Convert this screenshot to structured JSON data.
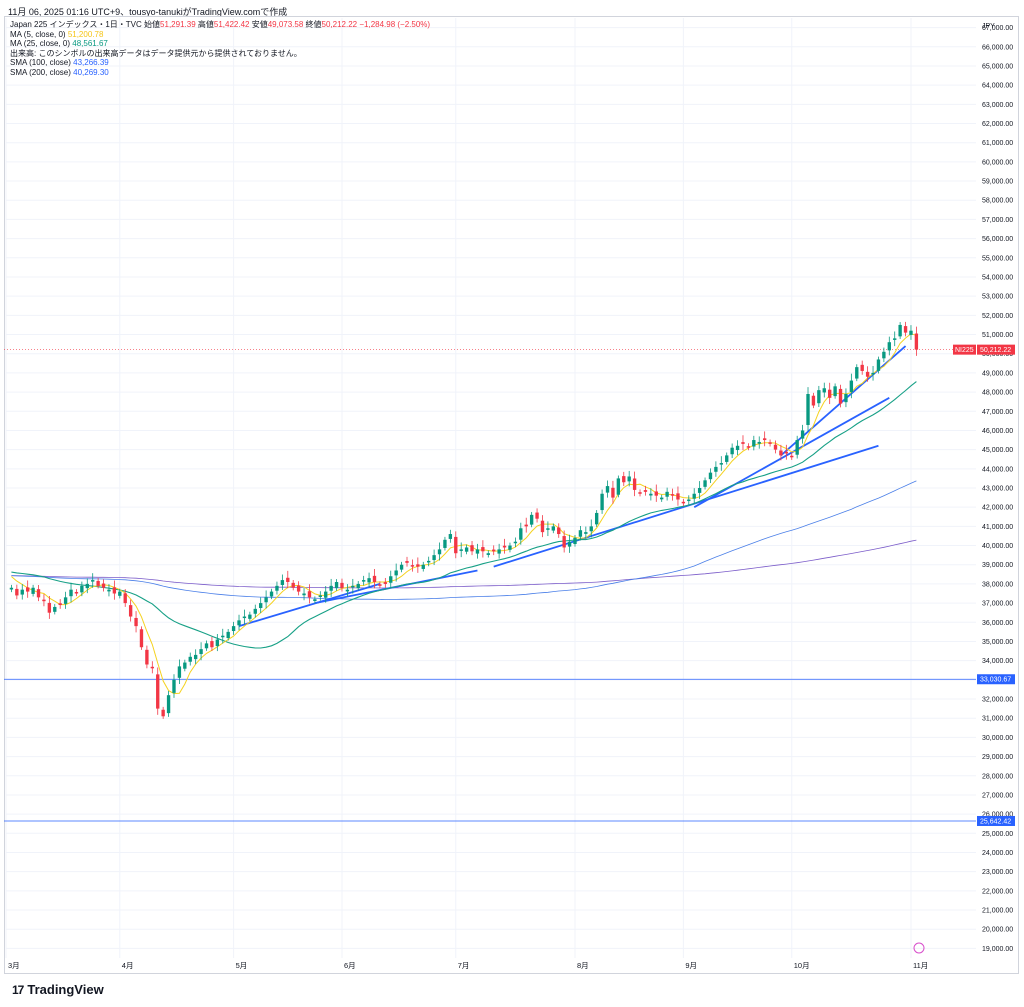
{
  "header": {
    "timestamp_line": "11月 06, 2025 01:16 UTC+9、tousyo-tanukiがTradingView.comで作成"
  },
  "legend": {
    "symbol_line": "Japan 225 インデックス・1日・TVC",
    "open_label": "始値",
    "open_value": "51,291.39",
    "high_label": "高値",
    "high_value": "51,422.42",
    "low_label": "安値",
    "low_value": "49,073.58",
    "close_label": "終値",
    "close_value": "50,212.22",
    "change_value": "−1,284.98 (−2.50%)",
    "ma5_label": "MA (5, close, 0)",
    "ma5_value": "51,200.78",
    "ma25_label": "MA (25, close, 0)",
    "ma25_value": "48,561.67",
    "volume_note": "出来高: このシンボルの出来高データはデータ提供元から提供されておりません。",
    "sma100_label": "SMA (100, close)",
    "sma100_value": "43,266.39",
    "sma200_label": "SMA (200, close)",
    "sma200_value": "40,269.30"
  },
  "brand": {
    "logo_text": "17",
    "name": "TradingView"
  },
  "chart_data": {
    "type": "candlestick",
    "currency": "JPY",
    "symbol_tag": "NI225",
    "last_price_label": "50,212.22",
    "ylim": [
      18500,
      67500
    ],
    "y_ticks": [
      19000,
      20000,
      21000,
      22000,
      23000,
      24000,
      25000,
      26000,
      27000,
      28000,
      29000,
      30000,
      31000,
      32000,
      33000,
      34000,
      35000,
      36000,
      37000,
      38000,
      39000,
      40000,
      41000,
      42000,
      43000,
      44000,
      45000,
      46000,
      47000,
      48000,
      49000,
      50000,
      51000,
      52000,
      53000,
      54000,
      55000,
      56000,
      57000,
      58000,
      59000,
      60000,
      61000,
      62000,
      63000,
      64000,
      65000,
      66000,
      67000
    ],
    "y_tick_labels": [
      "19,000.00",
      "20,000.00",
      "21,000.00",
      "22,000.00",
      "23,000.00",
      "24,000.00",
      "25,000.00",
      "26,000.00",
      "27,000.00",
      "28,000.00",
      "29,000.00",
      "30,000.00",
      "31,000.00",
      "32,000.00",
      "33,000.00",
      "34,000.00",
      "35,000.00",
      "36,000.00",
      "37,000.00",
      "38,000.00",
      "39,000.00",
      "40,000.00",
      "41,000.00",
      "42,000.00",
      "43,000.00",
      "44,000.00",
      "45,000.00",
      "46,000.00",
      "47,000.00",
      "48,000.00",
      "49,000.00",
      "50,000.00",
      "51,000.00",
      "52,000.00",
      "53,000.00",
      "54,000.00",
      "55,000.00",
      "56,000.00",
      "57,000.00",
      "58,000.00",
      "59,000.00",
      "60,000.00",
      "61,000.00",
      "62,000.00",
      "63,000.00",
      "64,000.00",
      "65,000.00",
      "66,000.00",
      "67,000.00"
    ],
    "x_month_labels": [
      {
        "label": "3月",
        "index": -1
      },
      {
        "label": "4月",
        "index": 20
      },
      {
        "label": "5月",
        "index": 41
      },
      {
        "label": "6月",
        "index": 61
      },
      {
        "label": "7月",
        "index": 82
      },
      {
        "label": "8月",
        "index": 104
      },
      {
        "label": "9月",
        "index": 124
      },
      {
        "label": "10月",
        "index": 144
      },
      {
        "label": "11月",
        "index": 166
      }
    ],
    "x_domain": [
      -1,
      178
    ],
    "horizontal_lines": [
      {
        "value": 33030.67,
        "label": "33,030.67",
        "color": "#2962ff"
      },
      {
        "value": 25642.42,
        "label": "25,642.42",
        "color": "#2962ff"
      }
    ],
    "last_price_line": {
      "value": 50212.22,
      "color": "#f23645"
    },
    "colors": {
      "up": "#089981",
      "down": "#f23645",
      "ma5": "#f5d21f",
      "ma25": "#17a086",
      "sma100": "#4a7fe8",
      "sma200": "#7b5cc9",
      "trendline": "#2962ff"
    },
    "closes": [
      37800,
      37400,
      37700,
      37600,
      37800,
      37300,
      37100,
      36500,
      36800,
      36900,
      37300,
      37700,
      37500,
      37900,
      38000,
      38200,
      37900,
      37800,
      37700,
      37500,
      37600,
      37000,
      36300,
      35800,
      34700,
      33800,
      33600,
      31500,
      31100,
      32200,
      33000,
      33700,
      33900,
      34200,
      34300,
      34600,
      34900,
      34700,
      35100,
      35300,
      35500,
      35800,
      36100,
      36300,
      36400,
      36700,
      37000,
      37300,
      37600,
      37900,
      38200,
      38100,
      37800,
      37600,
      37500,
      37300,
      37200,
      37400,
      37600,
      37900,
      38100,
      37800,
      37700,
      37900,
      38000,
      38200,
      38300,
      38100,
      37900,
      38000,
      38400,
      38700,
      39000,
      39100,
      38900,
      38900,
      39000,
      39200,
      39500,
      39800,
      40300,
      40600,
      39600,
      39800,
      39900,
      39700,
      39800,
      39700,
      39600,
      39700,
      39800,
      39900,
      40000,
      40200,
      40900,
      41000,
      41600,
      41400,
      40700,
      40900,
      41000,
      40600,
      39900,
      40200,
      40400,
      40800,
      40700,
      41000,
      41700,
      42700,
      43100,
      42500,
      43500,
      43300,
      43600,
      42900,
      42700,
      42800,
      42700,
      42600,
      42500,
      42800,
      42600,
      42400,
      42200,
      42400,
      42700,
      43000,
      43400,
      43800,
      44100,
      44300,
      44700,
      45100,
      45200,
      45300,
      45100,
      45500,
      45400,
      45500,
      45300,
      45000,
      44700,
      44800,
      44600,
      45500,
      46000,
      47900,
      47300,
      48100,
      48200,
      47700,
      48300,
      47400,
      47900,
      48600,
      49300,
      49100,
      48800,
      49000,
      49700,
      50100,
      50600,
      50800,
      51500,
      51100,
      51200,
      50212
    ]
  }
}
